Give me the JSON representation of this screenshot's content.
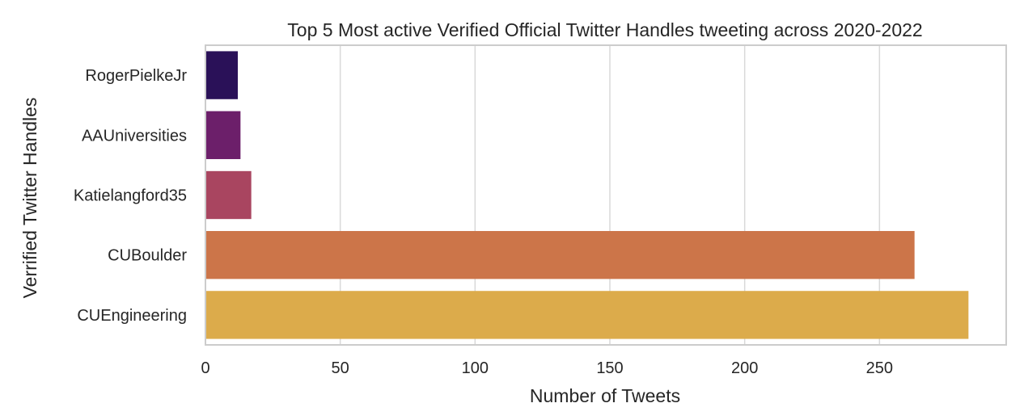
{
  "chart_data": {
    "type": "bar",
    "orientation": "horizontal",
    "title": "Top 5 Most active Verified Official Twitter Handles tweeting across 2020-2022",
    "xlabel": "Number of Tweets",
    "ylabel": "Verrified Twitter Handles",
    "categories": [
      "RogerPielkeJr",
      "AAUniversities",
      "Katielangford35",
      "CUBoulder",
      "CUEngineering"
    ],
    "values": [
      12,
      13,
      17,
      263,
      283
    ],
    "xlim": [
      0,
      297
    ],
    "xticks": [
      0,
      50,
      100,
      150,
      200,
      250
    ],
    "grid": true,
    "legend": false,
    "colors": [
      "#2a1158",
      "#6c1f6a",
      "#a94560",
      "#cc7549",
      "#dcab4b"
    ]
  }
}
